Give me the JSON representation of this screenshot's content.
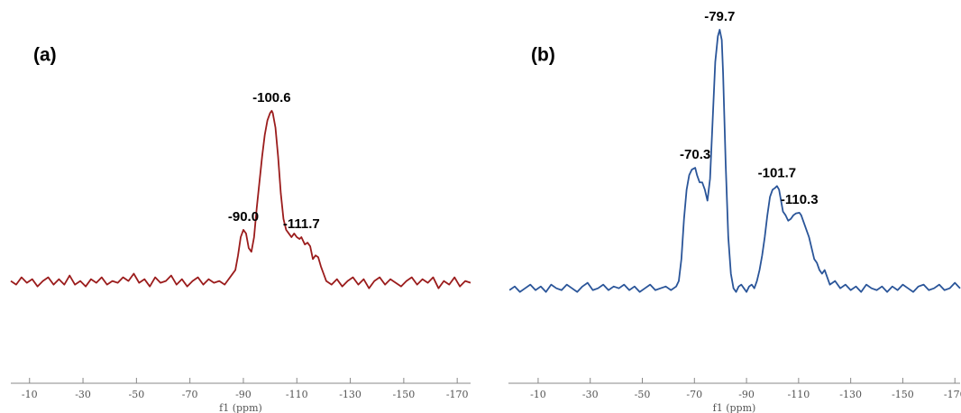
{
  "chart_data": [
    {
      "type": "line",
      "title": "(a)",
      "xlabel": "f1 (ppm)",
      "xlim": [
        -3,
        -175
      ],
      "xticks": [
        -10,
        -30,
        -50,
        -70,
        -90,
        -110,
        -130,
        -150,
        -170
      ],
      "ylim": [
        0,
        100
      ],
      "x": [
        -3,
        -5,
        -7,
        -9,
        -11,
        -13,
        -15,
        -17,
        -19,
        -21,
        -23,
        -25,
        -27,
        -29,
        -31,
        -33,
        -35,
        -37,
        -39,
        -41,
        -43,
        -45,
        -47,
        -49,
        -51,
        -53,
        -55,
        -57,
        -59,
        -61,
        -63,
        -65,
        -67,
        -69,
        -71,
        -73,
        -75,
        -77,
        -79,
        -81,
        -83,
        -85,
        -87,
        -88,
        -89,
        -90,
        -91,
        -92,
        -93,
        -94,
        -95,
        -96,
        -97,
        -98,
        -99,
        -100,
        -100.6,
        -101,
        -102,
        -103,
        -104,
        -105,
        -106,
        -107,
        -108,
        -109,
        -110,
        -111,
        -111.7,
        -113,
        -114,
        -115,
        -116,
        -117,
        -118,
        -119,
        -120,
        -121,
        -123,
        -125,
        -127,
        -129,
        -131,
        -133,
        -135,
        -137,
        -139,
        -141,
        -143,
        -145,
        -147,
        -149,
        -151,
        -153,
        -155,
        -157,
        -159,
        -161,
        -163,
        -165,
        -167,
        -169,
        -171,
        -173,
        -175
      ],
      "series": [
        {
          "color": "#9b1c1c",
          "values": [
            28,
            27,
            29,
            27.5,
            28.5,
            26.5,
            28,
            29,
            27,
            28.5,
            27,
            29.5,
            27,
            28,
            26.5,
            28.5,
            27.5,
            29,
            27,
            28,
            27.5,
            29,
            28,
            30,
            27.5,
            28.5,
            26.5,
            29,
            27.5,
            28,
            29.5,
            27,
            28.5,
            26.5,
            28,
            29,
            27,
            28.5,
            27.5,
            28,
            27,
            29,
            31,
            35,
            40,
            42,
            41,
            37,
            36,
            40,
            48,
            55,
            62,
            68,
            72,
            74,
            74.6,
            74,
            70,
            62,
            52,
            45,
            42,
            41,
            40,
            41,
            40,
            39.5,
            40,
            38,
            38.5,
            37.5,
            34,
            35,
            34.5,
            32,
            30,
            28,
            27,
            28.5,
            26.5,
            28,
            29,
            27,
            28.5,
            26,
            28,
            29,
            27,
            28.5,
            27.5,
            26.5,
            28,
            29,
            27,
            28.5,
            27.5,
            29,
            26,
            28,
            27,
            29,
            26.5,
            28,
            27.5
          ]
        }
      ],
      "annotations": [
        {
          "value": -90,
          "label": "-90.0"
        },
        {
          "value": -100.6,
          "label": "-100.6"
        },
        {
          "value": -111.7,
          "label": "-111.7"
        }
      ]
    },
    {
      "type": "line",
      "title": "(b)",
      "xlabel": "f1 (ppm)",
      "xlim": [
        1.4,
        -172
      ],
      "xticks": [
        -10,
        -30,
        -50,
        -70,
        -90,
        -110,
        -130,
        -150,
        -170
      ],
      "ylim": [
        0,
        100
      ],
      "x": [
        1,
        -1,
        -3,
        -5,
        -7,
        -9,
        -11,
        -13,
        -15,
        -17,
        -19,
        -21,
        -23,
        -25,
        -27,
        -29,
        -31,
        -33,
        -35,
        -37,
        -39,
        -41,
        -43,
        -45,
        -47,
        -49,
        -51,
        -53,
        -55,
        -57,
        -59,
        -61,
        -63,
        -64,
        -65,
        -66,
        -67,
        -68,
        -69,
        -70.3,
        -71,
        -72,
        -73,
        -74,
        -75,
        -76,
        -77,
        -78,
        -79,
        -79.7,
        -80.5,
        -81,
        -82,
        -83,
        -84,
        -85,
        -86,
        -87,
        -88,
        -89,
        -90,
        -91,
        -92,
        -93,
        -94,
        -95,
        -96,
        -97,
        -98,
        -99,
        -100,
        -101,
        -101.7,
        -102.5,
        -103,
        -104,
        -105,
        -106,
        -107,
        -108,
        -109,
        -110.3,
        -111,
        -112,
        -113,
        -114,
        -115,
        -116,
        -117,
        -118,
        -119,
        -120,
        -121,
        -122,
        -124,
        -126,
        -128,
        -130,
        -132,
        -134,
        -136,
        -138,
        -140,
        -142,
        -144,
        -146,
        -148,
        -150,
        -152,
        -154,
        -156,
        -158,
        -160,
        -162,
        -164,
        -166,
        -168,
        -170,
        -172
      ],
      "series": [
        {
          "color": "#2a5599",
          "values": [
            25.5,
            26.5,
            25,
            26,
            27,
            25.5,
            26.5,
            25,
            27,
            26,
            25.5,
            27,
            26,
            25,
            26.5,
            27.5,
            25.5,
            26,
            27,
            25.5,
            26.5,
            26,
            27,
            25.5,
            26.5,
            25,
            26,
            27,
            25.5,
            26,
            26.5,
            25.5,
            26.5,
            28,
            34,
            45,
            53,
            57,
            58.5,
            59,
            57,
            55,
            55,
            53,
            50,
            56,
            72,
            88,
            95,
            96.8,
            94,
            85,
            60,
            40,
            30,
            26,
            25,
            26.5,
            27,
            26,
            25,
            26.5,
            27,
            26,
            28,
            31,
            35,
            40,
            46,
            51,
            53,
            53.5,
            54,
            53,
            51,
            47,
            46,
            44.5,
            45,
            46,
            46.5,
            46.7,
            46,
            44,
            42,
            40,
            37,
            34,
            33,
            31,
            30,
            31,
            29,
            27,
            28,
            26,
            27,
            25.5,
            26.5,
            25,
            27,
            26,
            25.5,
            26.5,
            25,
            26.5,
            25.5,
            27,
            26,
            25,
            26.5,
            27,
            25.5,
            26,
            27,
            25.5,
            26,
            27.5,
            26
          ]
        }
      ],
      "annotations": [
        {
          "value": -70.3,
          "label": "-70.3"
        },
        {
          "value": -79.7,
          "label": "-79.7"
        },
        {
          "value": -101.7,
          "label": "-101.7"
        },
        {
          "value": -110.3,
          "label": "-110.3"
        }
      ]
    }
  ]
}
